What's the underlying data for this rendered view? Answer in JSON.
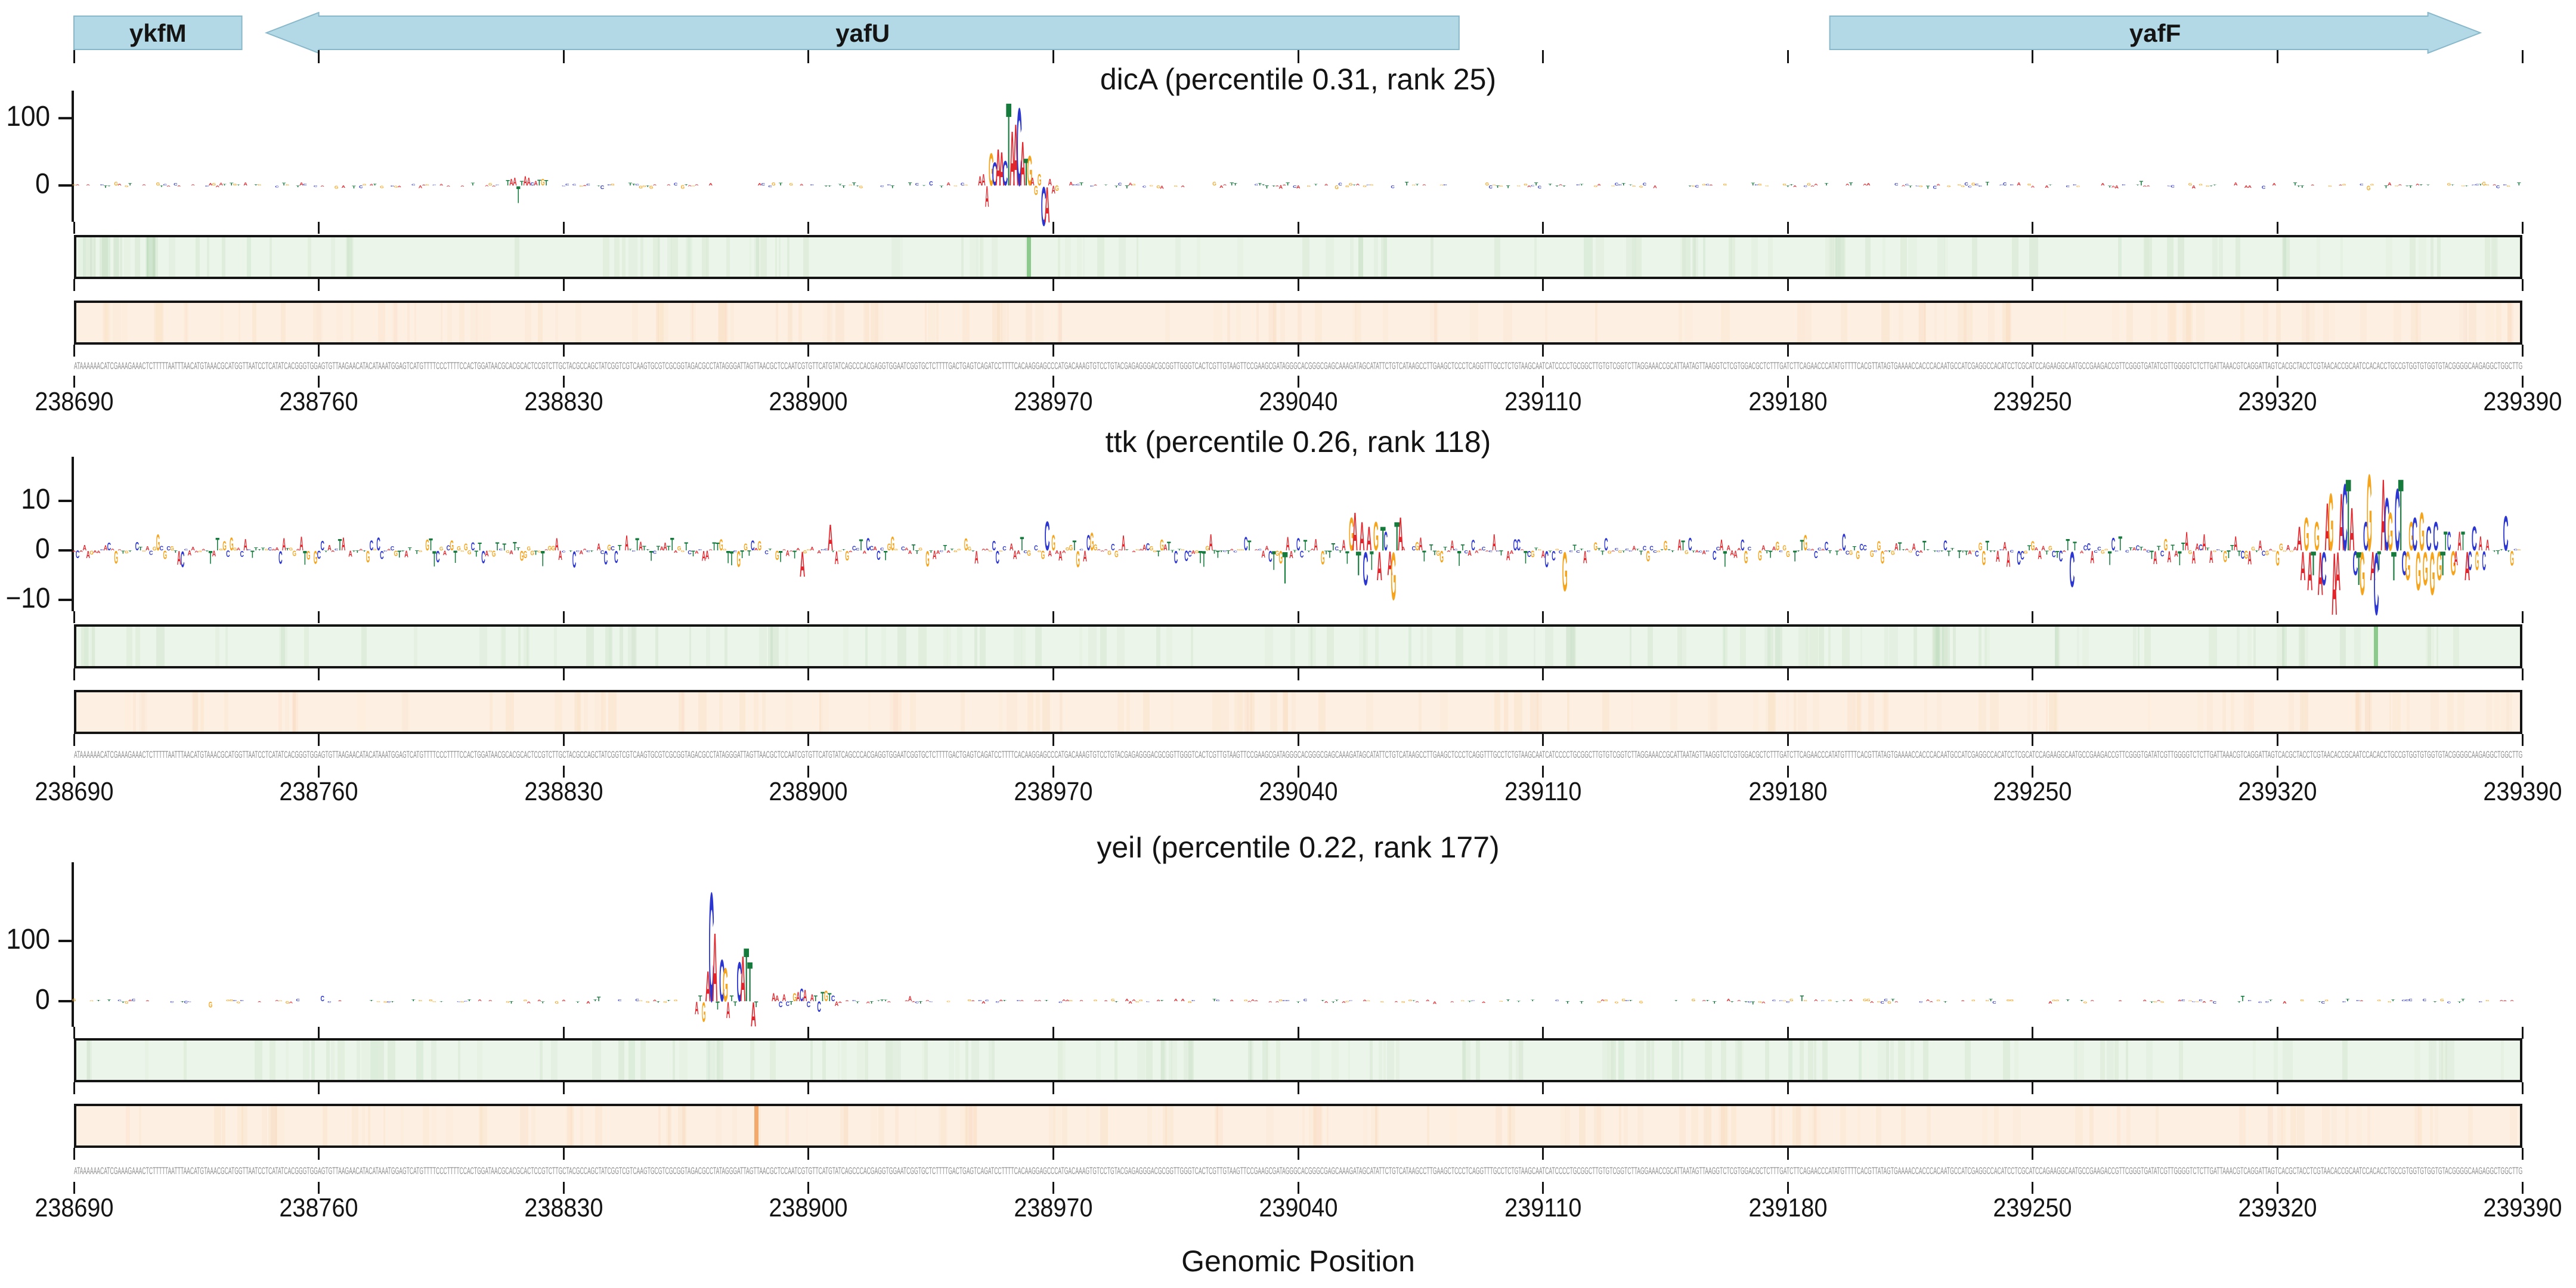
{
  "axis": {
    "xlabel": "Genomic Position",
    "x_start": 238690,
    "x_end": 239390,
    "x_tick_step": 70,
    "x_tick_labels": [
      "238690",
      "238760",
      "238830",
      "238900",
      "238970",
      "239040",
      "239110",
      "239180",
      "239250",
      "239320",
      "239390"
    ]
  },
  "colors": {
    "A": "#e0262c",
    "C": "#2b35cf",
    "G": "#f5a41d",
    "T": "#157a3c",
    "gene_fill": "#b3d9e7",
    "gene_edge": "#88b8ca",
    "green_track_bg": "#ecf5e9",
    "green_track_line": "#8cc98c",
    "green_stripe": "#5ba05b",
    "orange_track_bg": "#fdf0e2",
    "orange_track_line": "#f3a96b",
    "orange_stripe": "#eda05f",
    "sequence_text": "#8f8f8f",
    "axis_color": "#141414"
  },
  "genes": [
    {
      "name": "ykfM",
      "start": 238690,
      "end": 238738,
      "shape": "rect"
    },
    {
      "name": "yafU",
      "start": 238745,
      "end": 239086,
      "shape": "arrow-left"
    },
    {
      "name": "yafF",
      "start": 239192,
      "end": 239378,
      "shape": "arrow-right"
    }
  ],
  "sequence_start": "ATAAAAAACATCGAAAGAAACTCTTTTTAATTTAACATGTAAACGCATGGTTAATCCTCATATCACGGGTGGAGTGTTAAGAACATACATAAATGGAGTCATGTTTTCCCTTTTCCA",
  "chart_data": [
    {
      "type": "bar",
      "subtype": "sequence-logo-attribution",
      "title": "dicA (percentile 0.31, rank 25)",
      "tf": "dicA",
      "percentile": 0.31,
      "rank": 25,
      "x_range": [
        238690,
        239390
      ],
      "yticks": [
        100,
        0
      ],
      "ylim": [
        -54,
        141
      ],
      "seed": 11,
      "noise": {
        "density": 0.78,
        "amp": 5,
        "neg_frac": 0.38
      },
      "peaks": [
        {
          "start": 238814,
          "letters": [
            [
              "T",
              8
            ],
            [
              "A",
              10
            ],
            [
              "A",
              12
            ],
            [
              "T",
              -26
            ],
            [
              "T",
              7
            ],
            [
              "A",
              14
            ],
            [
              "A",
              12
            ],
            [
              "C",
              5
            ],
            [
              "A",
              7
            ],
            [
              "T",
              9
            ],
            [
              "G",
              10
            ],
            [
              "T",
              8
            ]
          ]
        },
        {
          "start": 238949,
          "letters": [
            [
              "A",
              14
            ],
            [
              "A",
              18
            ],
            [
              "A",
              -32
            ],
            [
              "G",
              50
            ],
            [
              "C",
              36
            ],
            [
              "A",
              56
            ],
            [
              "A",
              52
            ],
            [
              "C",
              38
            ],
            [
              "T",
              128
            ],
            [
              "A",
              84
            ],
            [
              "A",
              95
            ],
            [
              "C",
              120
            ],
            [
              "A",
              68
            ],
            [
              "T",
              42
            ],
            [
              "G",
              46
            ],
            [
              "A",
              12
            ],
            [
              "G",
              -14
            ],
            [
              "G",
              18
            ],
            [
              "C",
              -60
            ],
            [
              "A",
              -55
            ],
            [
              "A",
              10
            ],
            [
              "A",
              -12
            ],
            [
              "G",
              -8
            ]
          ]
        }
      ],
      "green_line_bp": 238963,
      "orange_line_bp": null
    },
    {
      "type": "bar",
      "subtype": "sequence-logo-attribution",
      "title": "ttk (percentile 0.26, rank 118)",
      "tf": "ttk",
      "percentile": 0.26,
      "rank": 118,
      "x_range": [
        238690,
        239390
      ],
      "yticks": [
        10,
        0,
        -10
      ],
      "ylim": [
        -12,
        19
      ],
      "seed": 22,
      "noise": {
        "density": 0.95,
        "amp": 3.2,
        "neg_frac": 0.5
      },
      "peaks": [
        {
          "start": 239055,
          "letters": [
            [
              "G",
              7
            ],
            [
              "A",
              8
            ],
            [
              "T",
              -5
            ],
            [
              "A",
              6
            ],
            [
              "C",
              -7
            ],
            [
              "A",
              5
            ],
            [
              "T",
              -4
            ],
            [
              "G",
              6
            ],
            [
              "A",
              -6
            ],
            [
              "T",
              5
            ],
            [
              "C",
              4
            ],
            [
              "A",
              -5
            ],
            [
              "G",
              -10
            ],
            [
              "T",
              6
            ],
            [
              "A",
              7
            ]
          ]
        },
        {
          "start": 239326,
          "letters": [
            [
              "A",
              5
            ],
            [
              "A",
              -6
            ],
            [
              "G",
              7
            ],
            [
              "A",
              -8
            ],
            [
              "T",
              -5
            ],
            [
              "G",
              6
            ],
            [
              "A",
              -9
            ],
            [
              "C",
              -7
            ],
            [
              "A",
              10
            ],
            [
              "G",
              12
            ],
            [
              "A",
              -13
            ],
            [
              "A",
              -8
            ],
            [
              "A",
              12
            ],
            [
              "C",
              14
            ],
            [
              "T",
              15
            ],
            [
              "A",
              9
            ],
            [
              "C",
              -5
            ],
            [
              "T",
              -7
            ],
            [
              "G",
              -9
            ],
            [
              "C",
              6
            ],
            [
              "G",
              16
            ],
            [
              "A",
              -6
            ],
            [
              "C",
              -13
            ],
            [
              "T",
              -4
            ],
            [
              "A",
              15
            ],
            [
              "C",
              11
            ],
            [
              "G",
              8
            ],
            [
              "T",
              -6
            ],
            [
              "C",
              13
            ],
            [
              "T",
              15
            ],
            [
              "C",
              -5
            ],
            [
              "G",
              -6
            ],
            [
              "G",
              6
            ],
            [
              "C",
              7
            ],
            [
              "G",
              -8
            ],
            [
              "G",
              8
            ],
            [
              "G",
              -7
            ],
            [
              "C",
              5
            ],
            [
              "G",
              -9
            ],
            [
              "C",
              6
            ],
            [
              "G",
              -6
            ],
            [
              "T",
              -5
            ],
            [
              "T",
              4
            ],
            [
              "C",
              4
            ],
            [
              "G",
              -5
            ],
            [
              "A",
              -3
            ],
            [
              "A",
              4
            ],
            [
              "T",
              4
            ],
            [
              "A",
              -6
            ],
            [
              "C",
              -4
            ],
            [
              "C",
              5
            ],
            [
              "G",
              -4
            ],
            [
              "A",
              3
            ],
            [
              "C",
              -4
            ]
          ]
        }
      ],
      "green_line_bp": 239348,
      "orange_line_bp": null
    },
    {
      "type": "bar",
      "subtype": "sequence-logo-attribution",
      "title": "yeiI (percentile 0.22, rank 177)",
      "tf": "yeiI",
      "percentile": 0.22,
      "rank": 177,
      "x_range": [
        238690,
        239390
      ],
      "yticks": [
        100,
        0
      ],
      "ylim": [
        -43,
        231
      ],
      "seed": 33,
      "noise": {
        "density": 0.8,
        "amp": 4,
        "neg_frac": 0.4
      },
      "peaks": [
        {
          "start": 238868,
          "letters": [
            [
              "A",
              -22
            ],
            [
              "T",
              10
            ],
            [
              "G",
              -34
            ],
            [
              "A",
              52
            ],
            [
              "C",
              188
            ],
            [
              "A",
              118
            ],
            [
              "T",
              -14
            ],
            [
              "C",
              72
            ],
            [
              "G",
              58
            ],
            [
              "A",
              -28
            ],
            [
              "T",
              10
            ],
            [
              "T",
              -8
            ],
            [
              "C",
              68
            ],
            [
              "A",
              78
            ],
            [
              "T",
              92
            ],
            [
              "T",
              68
            ],
            [
              "A",
              -42
            ],
            [
              "T",
              -10
            ]
          ]
        },
        {
          "start": 238890,
          "letters": [
            [
              "A",
              14
            ],
            [
              "A",
              10
            ],
            [
              "C",
              -10
            ],
            [
              "A",
              12
            ],
            [
              "C",
              -8
            ],
            [
              "T",
              -6
            ],
            [
              "G",
              14
            ],
            [
              "A",
              16
            ],
            [
              "C",
              22
            ],
            [
              "A",
              20
            ],
            [
              "C",
              -10
            ],
            [
              "A",
              12
            ],
            [
              "T",
              10
            ],
            [
              "C",
              -18
            ],
            [
              "T",
              16
            ],
            [
              "G",
              18
            ],
            [
              "T",
              14
            ],
            [
              "C",
              10
            ],
            [
              "A",
              -8
            ]
          ]
        }
      ],
      "green_line_bp": null,
      "orange_line_bp": 238885
    }
  ]
}
